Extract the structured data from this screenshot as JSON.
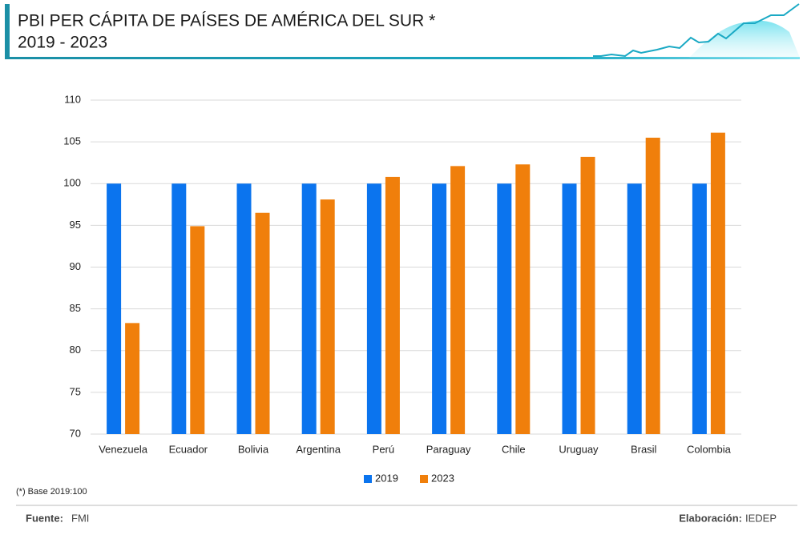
{
  "chart_data": {
    "type": "bar",
    "title": "PBI PER CÁPITA DE PAÍSES DE AMÉRICA DEL SUR *",
    "subtitle": "2019 - 2023",
    "categories": [
      "Venezuela",
      "Ecuador",
      "Bolivia",
      "Argentina",
      "Perú",
      "Paraguay",
      "Chile",
      "Uruguay",
      "Brasil",
      "Colombia"
    ],
    "series": [
      {
        "name": "2019",
        "color": "#0b74ee",
        "values": [
          100,
          100,
          100,
          100,
          100,
          100,
          100,
          100,
          100,
          100
        ]
      },
      {
        "name": "2023",
        "color": "#f07f0b",
        "values": [
          83.3,
          94.9,
          96.5,
          98.1,
          100.8,
          102.1,
          102.3,
          103.2,
          105.5,
          106.1
        ]
      }
    ],
    "ylim": [
      70,
      110
    ],
    "yticks": [
      70,
      75,
      80,
      85,
      90,
      95,
      100,
      105,
      110
    ],
    "grid": true,
    "legend": "bottom",
    "note": "(*) Base 2019:100",
    "source_label": "Fuente:",
    "source": "FMI",
    "credit_label": "Elaboración:",
    "credit": "IEDEP"
  }
}
